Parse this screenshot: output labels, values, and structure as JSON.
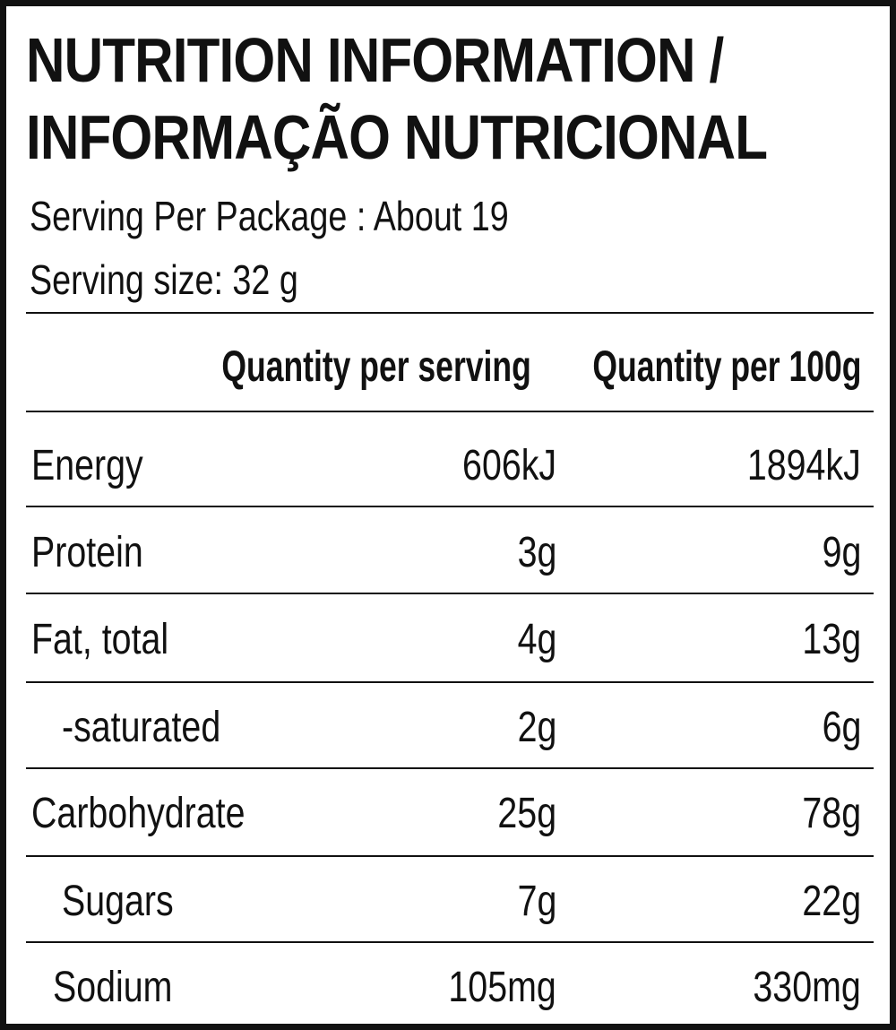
{
  "title": {
    "line1": "NUTRITION INFORMATION /",
    "line2": "INFORMAÇÃO NUTRICIONAL"
  },
  "serving": {
    "per_package": "Serving Per Package : About 19",
    "size": "Serving size: 32 g"
  },
  "table": {
    "headers": {
      "per_serving": "Quantity per serving",
      "per_100g": "Quantity per 100g"
    },
    "rows": [
      {
        "label": "Energy",
        "per_serving": "606kJ",
        "per_100g": "1894kJ"
      },
      {
        "label": "Protein",
        "per_serving": "3g",
        "per_100g": "9g"
      },
      {
        "label": "Fat, total",
        "per_serving": "4g",
        "per_100g": "13g"
      },
      {
        "label": "-saturated",
        "per_serving": "2g",
        "per_100g": "6g"
      },
      {
        "label": "Carbohydrate",
        "per_serving": "25g",
        "per_100g": "78g"
      },
      {
        "label": "Sugars",
        "per_serving": "7g",
        "per_100g": "22g"
      },
      {
        "label": "Sodium",
        "per_serving": "105mg",
        "per_100g": "330mg"
      }
    ]
  },
  "colors": {
    "ink": "#111111",
    "background": "#ffffff"
  }
}
